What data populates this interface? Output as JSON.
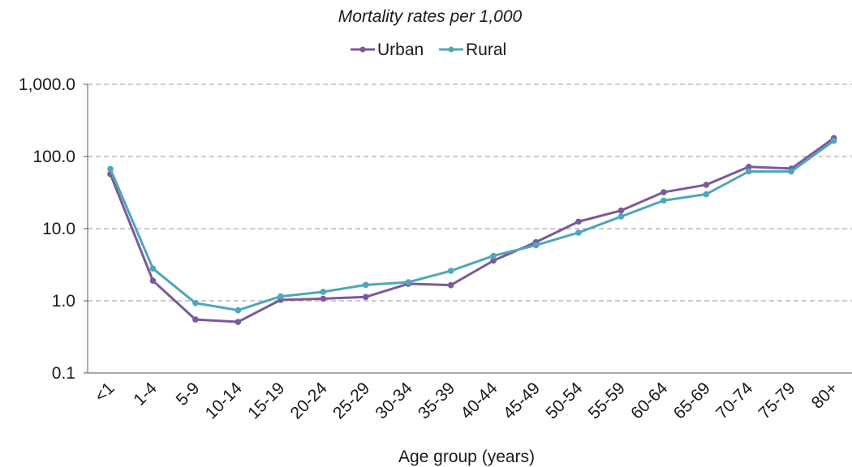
{
  "chart_data": {
    "type": "line",
    "title": "Mortality rates per 1,000",
    "xlabel": "Age group (years)",
    "ylabel": "",
    "y_scale": "log",
    "ylim": [
      0.1,
      1000
    ],
    "y_ticks": [
      0.1,
      1,
      10,
      100,
      1000
    ],
    "y_tick_labels": [
      "0.1",
      "1.0",
      "10.0",
      "100.0",
      "1,000.0"
    ],
    "grid": "horizontal dashed",
    "legend_position": "top-center",
    "categories": [
      "<1",
      "1-4",
      "5-9",
      "10-14",
      "15-19",
      "20-24",
      "25-29",
      "30-34",
      "35-39",
      "40-44",
      "45-49",
      "50-54",
      "55-59",
      "60-64",
      "65-69",
      "70-74",
      "75-79",
      "80+"
    ],
    "series": [
      {
        "name": "Urban",
        "color": "#7b5a9b",
        "values": [
          57,
          1.9,
          0.55,
          0.51,
          1.03,
          1.07,
          1.13,
          1.72,
          1.65,
          3.6,
          6.5,
          12.5,
          17.8,
          32,
          40.5,
          72,
          68,
          180
        ]
      },
      {
        "name": "Rural",
        "color": "#4fa7b9",
        "values": [
          67,
          2.8,
          0.93,
          0.74,
          1.15,
          1.33,
          1.66,
          1.81,
          2.6,
          4.2,
          5.9,
          8.8,
          14.7,
          24.5,
          30,
          62,
          62,
          165
        ]
      }
    ]
  }
}
